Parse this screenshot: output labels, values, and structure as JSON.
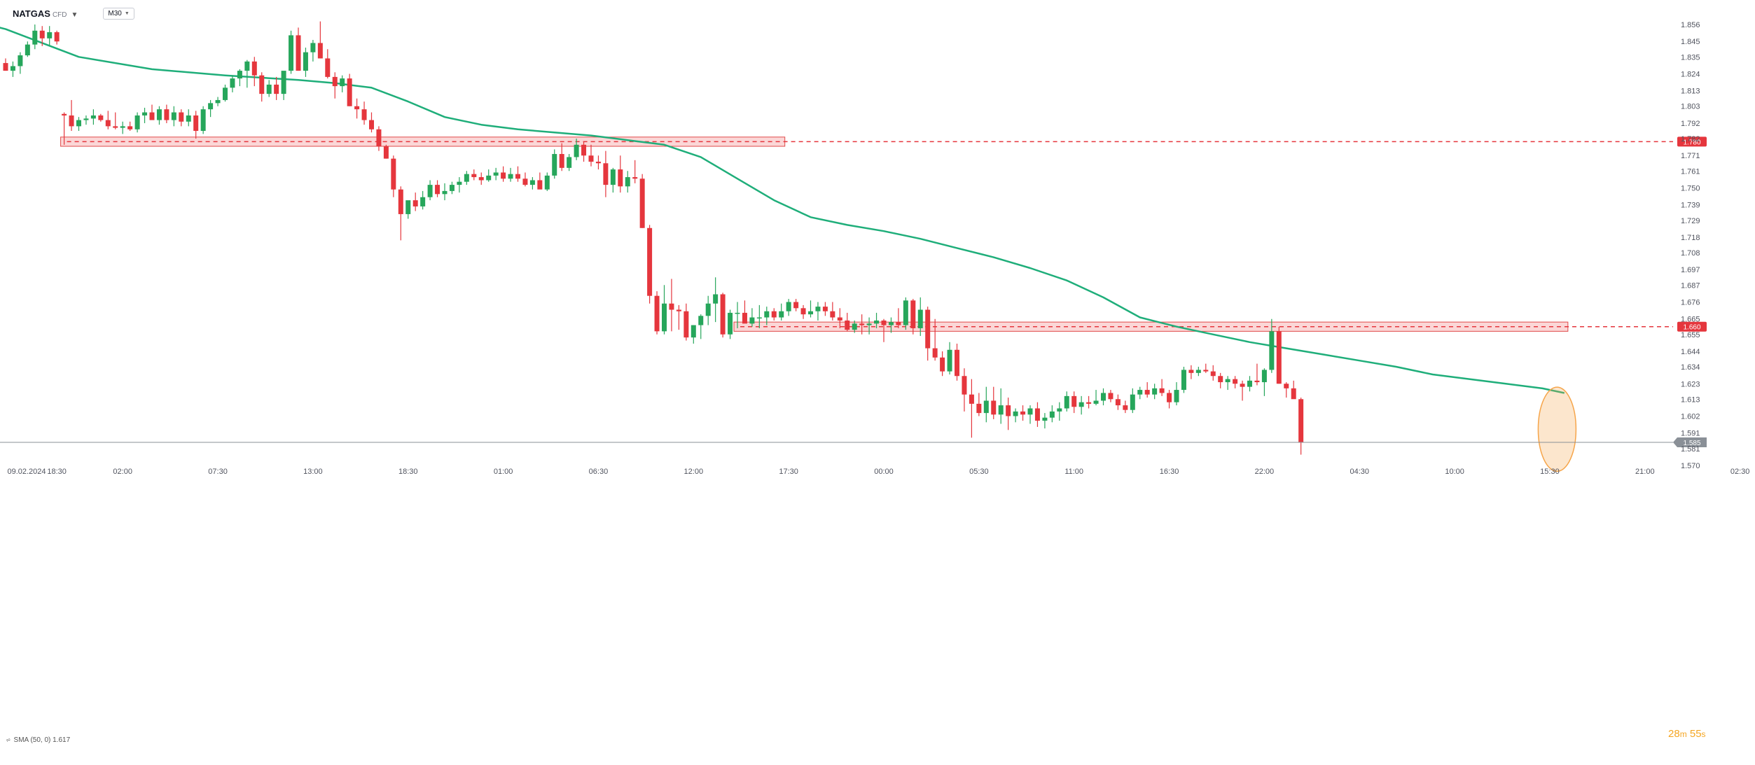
{
  "header": {
    "symbol": "NATGAS",
    "symbol_suffix": "CFD",
    "timeframe": "M30"
  },
  "legend": {
    "indicator": "SMA (50, 0) 1.617"
  },
  "countdown": {
    "minutes": "28",
    "minutes_unit": "m",
    "seconds": "55",
    "seconds_unit": "s"
  },
  "colors": {
    "up": "#26a65b",
    "down": "#e5363d",
    "sma": "#1fae7a",
    "zone_fill": "#f9caca",
    "zone_stroke": "#e04a4a",
    "level_line": "#e5363d",
    "current_price": "#8a9097",
    "highlight": "#f6a54a"
  },
  "chart_data": {
    "type": "candlestick",
    "title": "NATGAS",
    "timeframe": "M30",
    "ylim": [
      1.57,
      1.862
    ],
    "y_ticks": [
      "1.856",
      "1.845",
      "1.835",
      "1.824",
      "1.813",
      "1.803",
      "1.792",
      "1.782",
      "1.771",
      "1.761",
      "1.750",
      "1.739",
      "1.729",
      "1.718",
      "1.708",
      "1.697",
      "1.687",
      "1.676",
      "1.665",
      "1.655",
      "1.644",
      "1.634",
      "1.623",
      "1.613",
      "1.602",
      "1.591",
      "1.581",
      "1.570"
    ],
    "x_ticks": [
      {
        "label": "09.02.2024",
        "bar": -2
      },
      {
        "label": "18:30",
        "bar": 7
      },
      {
        "label": "02:00",
        "bar": 16
      },
      {
        "label": "07:30",
        "bar": 29
      },
      {
        "label": "13:00",
        "bar": 42
      },
      {
        "label": "18:30",
        "bar": 55
      },
      {
        "label": "01:00",
        "bar": 68
      },
      {
        "label": "06:30",
        "bar": 81
      },
      {
        "label": "12:00",
        "bar": 94
      },
      {
        "label": "17:30",
        "bar": 107
      },
      {
        "label": "00:00",
        "bar": 120
      },
      {
        "label": "05:30",
        "bar": 133
      },
      {
        "label": "11:00",
        "bar": 146
      },
      {
        "label": "16:30",
        "bar": 159
      },
      {
        "label": "22:00",
        "bar": 172
      },
      {
        "label": "04:30",
        "bar": 185
      },
      {
        "label": "10:00",
        "bar": 198
      },
      {
        "label": "15:30",
        "bar": 211
      },
      {
        "label": "21:00",
        "bar": 224
      },
      {
        "label": "02:30",
        "bar": 237
      }
    ],
    "levels": [
      {
        "price": 1.78,
        "label": "1.780",
        "zone": [
          1.777,
          1.783
        ],
        "zone_from_bar": 8,
        "zone_to_bar": 106
      },
      {
        "price": 1.66,
        "label": "1.660",
        "zone": [
          1.657,
          1.663
        ],
        "zone_from_bar": 100,
        "zone_to_bar": 213
      }
    ],
    "current_price": {
      "value": 1.585,
      "label": "1.585"
    },
    "highlight": {
      "bar": 212,
      "price_from": 1.573,
      "price_to": 1.614
    },
    "candles": [
      [
        1.831,
        1.834,
        1.826,
        1.826
      ],
      [
        1.826,
        1.832,
        1.822,
        1.829
      ],
      [
        1.829,
        1.838,
        1.824,
        1.836
      ],
      [
        1.836,
        1.845,
        1.835,
        1.843
      ],
      [
        1.843,
        1.856,
        1.84,
        1.852
      ],
      [
        1.852,
        1.855,
        1.842,
        1.847
      ],
      [
        1.847,
        1.855,
        1.842,
        1.851
      ],
      [
        1.851,
        1.852,
        1.843,
        1.845
      ],
      [
        1.798,
        1.799,
        1.778,
        1.797
      ],
      [
        1.797,
        1.807,
        1.787,
        1.79
      ],
      [
        1.79,
        1.796,
        1.787,
        1.794
      ],
      [
        1.794,
        1.797,
        1.791,
        1.795
      ],
      [
        1.795,
        1.801,
        1.791,
        1.797
      ],
      [
        1.797,
        1.798,
        1.793,
        1.794
      ],
      [
        1.794,
        1.8,
        1.788,
        1.79
      ],
      [
        1.79,
        1.799,
        1.788,
        1.789
      ],
      [
        1.789,
        1.793,
        1.785,
        1.79
      ],
      [
        1.79,
        1.793,
        1.787,
        1.788
      ],
      [
        1.788,
        1.799,
        1.786,
        1.797
      ],
      [
        1.797,
        1.802,
        1.792,
        1.799
      ],
      [
        1.799,
        1.804,
        1.795,
        1.794
      ],
      [
        1.794,
        1.803,
        1.791,
        1.801
      ],
      [
        1.801,
        1.804,
        1.792,
        1.794
      ],
      [
        1.794,
        1.803,
        1.79,
        1.799
      ],
      [
        1.799,
        1.801,
        1.79,
        1.793
      ],
      [
        1.793,
        1.801,
        1.79,
        1.797
      ],
      [
        1.797,
        1.8,
        1.782,
        1.787
      ],
      [
        1.787,
        1.803,
        1.785,
        1.801
      ],
      [
        1.801,
        1.807,
        1.796,
        1.805
      ],
      [
        1.805,
        1.809,
        1.803,
        1.807
      ],
      [
        1.807,
        1.817,
        1.806,
        1.815
      ],
      [
        1.815,
        1.823,
        1.812,
        1.821
      ],
      [
        1.821,
        1.827,
        1.816,
        1.826
      ],
      [
        1.826,
        1.833,
        1.815,
        1.832
      ],
      [
        1.832,
        1.835,
        1.816,
        1.823
      ],
      [
        1.823,
        1.825,
        1.806,
        1.811
      ],
      [
        1.811,
        1.82,
        1.809,
        1.817
      ],
      [
        1.817,
        1.822,
        1.807,
        1.811
      ],
      [
        1.811,
        1.824,
        1.807,
        1.826
      ],
      [
        1.826,
        1.852,
        1.824,
        1.849
      ],
      [
        1.849,
        1.854,
        1.826,
        1.826
      ],
      [
        1.826,
        1.841,
        1.822,
        1.838
      ],
      [
        1.838,
        1.846,
        1.832,
        1.844
      ],
      [
        1.844,
        1.858,
        1.834,
        1.834
      ],
      [
        1.834,
        1.84,
        1.821,
        1.822
      ],
      [
        1.822,
        1.825,
        1.808,
        1.816
      ],
      [
        1.816,
        1.823,
        1.812,
        1.821
      ],
      [
        1.821,
        1.824,
        1.803,
        1.803
      ],
      [
        1.803,
        1.808,
        1.795,
        1.801
      ],
      [
        1.801,
        1.806,
        1.791,
        1.794
      ],
      [
        1.794,
        1.799,
        1.786,
        1.788
      ],
      [
        1.788,
        1.79,
        1.774,
        1.777
      ],
      [
        1.777,
        1.778,
        1.769,
        1.769
      ],
      [
        1.769,
        1.771,
        1.744,
        1.749
      ],
      [
        1.749,
        1.751,
        1.716,
        1.733
      ],
      [
        1.733,
        1.741,
        1.73,
        1.742
      ],
      [
        1.742,
        1.747,
        1.735,
        1.738
      ],
      [
        1.738,
        1.748,
        1.736,
        1.744
      ],
      [
        1.744,
        1.755,
        1.742,
        1.752
      ],
      [
        1.752,
        1.755,
        1.744,
        1.746
      ],
      [
        1.746,
        1.753,
        1.742,
        1.748
      ],
      [
        1.748,
        1.754,
        1.746,
        1.752
      ],
      [
        1.752,
        1.757,
        1.747,
        1.754
      ],
      [
        1.754,
        1.761,
        1.752,
        1.759
      ],
      [
        1.759,
        1.762,
        1.755,
        1.757
      ],
      [
        1.757,
        1.76,
        1.752,
        1.755
      ],
      [
        1.755,
        1.762,
        1.754,
        1.758
      ],
      [
        1.758,
        1.763,
        1.755,
        1.76
      ],
      [
        1.76,
        1.764,
        1.754,
        1.756
      ],
      [
        1.756,
        1.763,
        1.754,
        1.759
      ],
      [
        1.759,
        1.764,
        1.754,
        1.756
      ],
      [
        1.756,
        1.76,
        1.751,
        1.752
      ],
      [
        1.752,
        1.757,
        1.749,
        1.755
      ],
      [
        1.755,
        1.76,
        1.751,
        1.749
      ],
      [
        1.749,
        1.76,
        1.748,
        1.758
      ],
      [
        1.758,
        1.775,
        1.756,
        1.772
      ],
      [
        1.772,
        1.779,
        1.761,
        1.763
      ],
      [
        1.763,
        1.772,
        1.761,
        1.77
      ],
      [
        1.77,
        1.782,
        1.768,
        1.778
      ],
      [
        1.778,
        1.78,
        1.767,
        1.771
      ],
      [
        1.771,
        1.778,
        1.764,
        1.767
      ],
      [
        1.767,
        1.771,
        1.762,
        1.766
      ],
      [
        1.766,
        1.774,
        1.744,
        1.752
      ],
      [
        1.752,
        1.763,
        1.747,
        1.762
      ],
      [
        1.762,
        1.771,
        1.747,
        1.751
      ],
      [
        1.751,
        1.761,
        1.747,
        1.757
      ],
      [
        1.757,
        1.768,
        1.753,
        1.756
      ],
      [
        1.756,
        1.759,
        1.724,
        1.724
      ],
      [
        1.724,
        1.726,
        1.675,
        1.68
      ],
      [
        1.68,
        1.683,
        1.655,
        1.657
      ],
      [
        1.657,
        1.687,
        1.655,
        1.675
      ],
      [
        1.675,
        1.691,
        1.657,
        1.671
      ],
      [
        1.671,
        1.674,
        1.658,
        1.67
      ],
      [
        1.67,
        1.675,
        1.651,
        1.653
      ],
      [
        1.653,
        1.661,
        1.649,
        1.661
      ],
      [
        1.661,
        1.668,
        1.652,
        1.667
      ],
      [
        1.667,
        1.68,
        1.661,
        1.675
      ],
      [
        1.675,
        1.692,
        1.663,
        1.681
      ],
      [
        1.681,
        1.682,
        1.653,
        1.655
      ],
      [
        1.655,
        1.671,
        1.652,
        1.669
      ],
      [
        1.669,
        1.676,
        1.659,
        1.669
      ],
      [
        1.669,
        1.677,
        1.663,
        1.662
      ],
      [
        1.662,
        1.672,
        1.66,
        1.666
      ],
      [
        1.666,
        1.674,
        1.659,
        1.666
      ],
      [
        1.666,
        1.673,
        1.661,
        1.67
      ],
      [
        1.67,
        1.672,
        1.664,
        1.666
      ],
      [
        1.666,
        1.675,
        1.664,
        1.67
      ],
      [
        1.67,
        1.678,
        1.667,
        1.676
      ],
      [
        1.676,
        1.678,
        1.67,
        1.672
      ],
      [
        1.672,
        1.674,
        1.665,
        1.668
      ],
      [
        1.668,
        1.677,
        1.666,
        1.67
      ],
      [
        1.67,
        1.676,
        1.664,
        1.673
      ],
      [
        1.673,
        1.676,
        1.667,
        1.67
      ],
      [
        1.67,
        1.676,
        1.664,
        1.666
      ],
      [
        1.666,
        1.672,
        1.659,
        1.664
      ],
      [
        1.664,
        1.669,
        1.657,
        1.658
      ],
      [
        1.658,
        1.664,
        1.656,
        1.662
      ],
      [
        1.662,
        1.668,
        1.655,
        1.661
      ],
      [
        1.661,
        1.666,
        1.655,
        1.662
      ],
      [
        1.662,
        1.669,
        1.659,
        1.664
      ],
      [
        1.664,
        1.665,
        1.65,
        1.661
      ],
      [
        1.661,
        1.666,
        1.656,
        1.663
      ],
      [
        1.663,
        1.672,
        1.659,
        1.661
      ],
      [
        1.661,
        1.679,
        1.658,
        1.677
      ],
      [
        1.677,
        1.678,
        1.655,
        1.659
      ],
      [
        1.659,
        1.679,
        1.654,
        1.671
      ],
      [
        1.671,
        1.673,
        1.638,
        1.646
      ],
      [
        1.646,
        1.665,
        1.638,
        1.64
      ],
      [
        1.64,
        1.644,
        1.628,
        1.631
      ],
      [
        1.631,
        1.65,
        1.629,
        1.645
      ],
      [
        1.645,
        1.649,
        1.625,
        1.628
      ],
      [
        1.628,
        1.633,
        1.605,
        1.616
      ],
      [
        1.616,
        1.626,
        1.588,
        1.61
      ],
      [
        1.61,
        1.617,
        1.602,
        1.604
      ],
      [
        1.604,
        1.621,
        1.598,
        1.612
      ],
      [
        1.612,
        1.621,
        1.6,
        1.603
      ],
      [
        1.603,
        1.62,
        1.597,
        1.609
      ],
      [
        1.609,
        1.614,
        1.593,
        1.602
      ],
      [
        1.602,
        1.607,
        1.598,
        1.605
      ],
      [
        1.605,
        1.609,
        1.599,
        1.603
      ],
      [
        1.603,
        1.609,
        1.597,
        1.607
      ],
      [
        1.607,
        1.611,
        1.595,
        1.599
      ],
      [
        1.599,
        1.604,
        1.594,
        1.601
      ],
      [
        1.601,
        1.609,
        1.598,
        1.605
      ],
      [
        1.605,
        1.611,
        1.599,
        1.607
      ],
      [
        1.607,
        1.618,
        1.605,
        1.615
      ],
      [
        1.615,
        1.618,
        1.604,
        1.608
      ],
      [
        1.608,
        1.615,
        1.603,
        1.611
      ],
      [
        1.611,
        1.615,
        1.607,
        1.61
      ],
      [
        1.61,
        1.619,
        1.609,
        1.612
      ],
      [
        1.612,
        1.62,
        1.609,
        1.617
      ],
      [
        1.617,
        1.619,
        1.611,
        1.613
      ],
      [
        1.613,
        1.616,
        1.606,
        1.609
      ],
      [
        1.609,
        1.612,
        1.604,
        1.606
      ],
      [
        1.606,
        1.62,
        1.604,
        1.616
      ],
      [
        1.616,
        1.621,
        1.613,
        1.619
      ],
      [
        1.619,
        1.624,
        1.614,
        1.616
      ],
      [
        1.616,
        1.623,
        1.613,
        1.62
      ],
      [
        1.62,
        1.626,
        1.615,
        1.617
      ],
      [
        1.617,
        1.619,
        1.607,
        1.611
      ],
      [
        1.611,
        1.624,
        1.609,
        1.619
      ],
      [
        1.619,
        1.634,
        1.617,
        1.632
      ],
      [
        1.632,
        1.635,
        1.626,
        1.63
      ],
      [
        1.63,
        1.634,
        1.628,
        1.632
      ],
      [
        1.632,
        1.636,
        1.63,
        1.631
      ],
      [
        1.631,
        1.635,
        1.625,
        1.628
      ],
      [
        1.628,
        1.63,
        1.62,
        1.624
      ],
      [
        1.624,
        1.628,
        1.619,
        1.626
      ],
      [
        1.626,
        1.628,
        1.62,
        1.623
      ],
      [
        1.623,
        1.625,
        1.612,
        1.621
      ],
      [
        1.621,
        1.628,
        1.618,
        1.625
      ],
      [
        1.625,
        1.636,
        1.622,
        1.624
      ],
      [
        1.624,
        1.633,
        1.615,
        1.632
      ],
      [
        1.632,
        1.665,
        1.63,
        1.657
      ],
      [
        1.657,
        1.66,
        1.623,
        1.623
      ],
      [
        1.623,
        1.624,
        1.614,
        1.62
      ],
      [
        1.62,
        1.625,
        1.614,
        1.613
      ],
      [
        1.613,
        1.614,
        1.577,
        1.585
      ]
    ],
    "sma": {
      "name": "SMA (50, 0)",
      "points": [
        [
          -5,
          1.859
        ],
        [
          0,
          1.853
        ],
        [
          10,
          1.835
        ],
        [
          20,
          1.827
        ],
        [
          30,
          1.823
        ],
        [
          40,
          1.82
        ],
        [
          45,
          1.818
        ],
        [
          50,
          1.815
        ],
        [
          55,
          1.806
        ],
        [
          60,
          1.796
        ],
        [
          65,
          1.791
        ],
        [
          70,
          1.788
        ],
        [
          75,
          1.786
        ],
        [
          80,
          1.784
        ],
        [
          85,
          1.781
        ],
        [
          90,
          1.778
        ],
        [
          95,
          1.77
        ],
        [
          100,
          1.756
        ],
        [
          105,
          1.742
        ],
        [
          110,
          1.731
        ],
        [
          115,
          1.726
        ],
        [
          120,
          1.722
        ],
        [
          125,
          1.717
        ],
        [
          130,
          1.711
        ],
        [
          135,
          1.705
        ],
        [
          140,
          1.698
        ],
        [
          145,
          1.69
        ],
        [
          150,
          1.679
        ],
        [
          155,
          1.666
        ],
        [
          160,
          1.66
        ],
        [
          165,
          1.655
        ],
        [
          170,
          1.65
        ],
        [
          175,
          1.646
        ],
        [
          180,
          1.642
        ],
        [
          185,
          1.638
        ],
        [
          190,
          1.634
        ],
        [
          195,
          1.629
        ],
        [
          200,
          1.626
        ],
        [
          205,
          1.623
        ],
        [
          210,
          1.62
        ],
        [
          213,
          1.617
        ]
      ]
    }
  }
}
